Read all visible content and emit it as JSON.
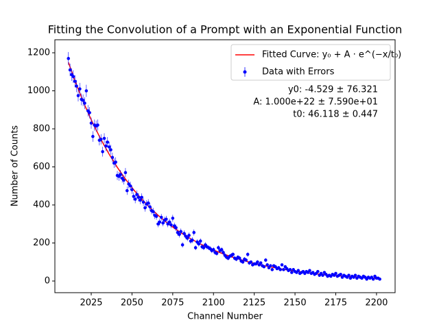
{
  "chart_data": {
    "type": "scatter",
    "title": "Fitting the Convolution of a Prompt with an Exponential Function",
    "xlabel": "Channel Number",
    "ylabel": "Number of Counts",
    "xlim": [
      2002.7,
      2211.4
    ],
    "ylim": [
      -61.3,
      1268.5
    ],
    "xticks": [
      2025,
      2050,
      2075,
      2100,
      2125,
      2150,
      2175,
      2200
    ],
    "yticks": [
      0,
      200,
      400,
      600,
      800,
      1000,
      1200
    ],
    "legend": "upper right",
    "annotations": [
      "y0: -4.529 ± 76.321",
      "A: 1.000e+22 ± 7.590e+01",
      "t0: 46.118 ± 0.447"
    ],
    "series": [
      {
        "name": "Fitted Curve: y₀ + A · e^(−x/t₀)",
        "color": "#ff0000",
        "type": "line",
        "x": [
          2011,
          2016,
          2021,
          2026,
          2031,
          2036,
          2041,
          2046,
          2051,
          2056,
          2061,
          2066,
          2071,
          2076,
          2081,
          2086,
          2091,
          2096,
          2101,
          2106,
          2111,
          2116,
          2121,
          2126,
          2131,
          2136,
          2141,
          2146,
          2151,
          2156,
          2161,
          2166,
          2171,
          2176,
          2181,
          2186,
          2191,
          2196,
          2201
        ],
        "values": [
          1149.5,
          1030.9,
          924.5,
          829.1,
          743.4,
          666.6,
          597.6,
          535.7,
          480.2,
          430.4,
          385.7,
          345.6,
          309.7,
          277.4,
          248.4,
          222.4,
          199.1,
          178.2,
          159.4,
          142.6,
          127.5,
          113.9,
          101.7,
          90.8,
          81.0,
          72.3,
          64.4,
          57.3,
          50.9,
          45.3,
          40.1,
          35.6,
          31.4,
          27.8,
          24.4,
          21.5,
          18.8,
          16.4,
          14.3
        ]
      },
      {
        "name": "Data with Errors",
        "color": "#0000ff",
        "type": "errorbar",
        "x": [
          2011,
          2012,
          2013,
          2014,
          2015,
          2016,
          2017,
          2018,
          2019,
          2020,
          2021,
          2022,
          2023,
          2024,
          2025,
          2026,
          2027,
          2028,
          2029,
          2030,
          2031,
          2032,
          2033,
          2034,
          2035,
          2036,
          2037,
          2038,
          2039,
          2040,
          2041,
          2042,
          2043,
          2044,
          2045,
          2046,
          2047,
          2048,
          2049,
          2050,
          2051,
          2052,
          2053,
          2054,
          2055,
          2056,
          2057,
          2058,
          2059,
          2060,
          2061,
          2062,
          2063,
          2064,
          2065,
          2066,
          2067,
          2068,
          2069,
          2070,
          2071,
          2072,
          2073,
          2074,
          2075,
          2076,
          2077,
          2078,
          2079,
          2080,
          2081,
          2082,
          2083,
          2084,
          2085,
          2086,
          2087,
          2088,
          2089,
          2090,
          2091,
          2092,
          2093,
          2094,
          2095,
          2096,
          2097,
          2098,
          2099,
          2100,
          2101,
          2102,
          2103,
          2104,
          2105,
          2106,
          2107,
          2108,
          2109,
          2110,
          2111,
          2112,
          2113,
          2114,
          2115,
          2116,
          2117,
          2118,
          2119,
          2120,
          2121,
          2122,
          2123,
          2124,
          2125,
          2126,
          2127,
          2128,
          2129,
          2130,
          2131,
          2132,
          2133,
          2134,
          2135,
          2136,
          2137,
          2138,
          2139,
          2140,
          2141,
          2142,
          2143,
          2144,
          2145,
          2146,
          2147,
          2148,
          2149,
          2150,
          2151,
          2152,
          2153,
          2154,
          2155,
          2156,
          2157,
          2158,
          2159,
          2160,
          2161,
          2162,
          2163,
          2164,
          2165,
          2166,
          2167,
          2168,
          2169,
          2170,
          2171,
          2172,
          2173,
          2174,
          2175,
          2176,
          2177,
          2178,
          2179,
          2180,
          2181,
          2182,
          2183,
          2184,
          2185,
          2186,
          2187,
          2188,
          2189,
          2190,
          2191,
          2192,
          2193,
          2194,
          2195,
          2196,
          2197,
          2198,
          2199,
          2200,
          2201,
          2202
        ],
        "values": [
          1170,
          1110,
          1085,
          1075,
          1050,
          1025,
          975,
          1010,
          955,
          950,
          935,
          1000,
          895,
          885,
          830,
          760,
          820,
          815,
          820,
          740,
          745,
          680,
          750,
          710,
          730,
          705,
          690,
          650,
          620,
          625,
          555,
          550,
          560,
          540,
          530,
          570,
          475,
          510,
          500,
          480,
          445,
          430,
          455,
          440,
          425,
          440,
          415,
          385,
          405,
          410,
          390,
          370,
          365,
          345,
          340,
          300,
          310,
          335,
          305,
          320,
          325,
          300,
          310,
          295,
          330,
          290,
          280,
          255,
          245,
          260,
          190,
          250,
          235,
          225,
          240,
          210,
          215,
          255,
          175,
          205,
          195,
          210,
          180,
          175,
          190,
          180,
          175,
          170,
          160,
          165,
          150,
          145,
          175,
          160,
          165,
          150,
          135,
          125,
          120,
          130,
          135,
          140,
          120,
          115,
          125,
          120,
          105,
          100,
          115,
          110,
          140,
          95,
          100,
          85,
          90,
          90,
          100,
          85,
          95,
          80,
          75,
          110,
          85,
          70,
          80,
          60,
          80,
          75,
          65,
          70,
          60,
          85,
          60,
          75,
          65,
          55,
          60,
          45,
          60,
          50,
          45,
          55,
          40,
          45,
          50,
          40,
          50,
          45,
          55,
          40,
          45,
          35,
          40,
          50,
          30,
          40,
          30,
          45,
          35,
          25,
          30,
          25,
          35,
          30,
          40,
          25,
          30,
          35,
          20,
          30,
          25,
          20,
          30,
          15,
          25,
          20,
          30,
          15,
          25,
          20,
          15,
          25,
          20,
          10,
          20,
          15,
          20,
          10,
          25,
          15,
          15,
          10
        ],
        "errors": [
          34,
          33,
          33,
          33,
          32,
          32,
          31,
          32,
          31,
          31,
          31,
          32,
          30,
          30,
          29,
          28,
          29,
          29,
          29,
          27,
          27,
          26,
          27,
          27,
          27,
          27,
          26,
          25,
          25,
          25,
          24,
          23,
          24,
          23,
          23,
          24,
          22,
          23,
          22,
          22,
          21,
          21,
          21,
          21,
          21,
          21,
          20,
          20,
          20,
          20,
          20,
          19,
          19,
          19,
          18,
          17,
          18,
          18,
          17,
          18,
          18,
          17,
          18,
          17,
          18,
          17,
          17,
          16,
          16,
          16,
          14,
          16,
          15,
          15,
          15,
          14,
          15,
          16,
          13,
          14,
          14,
          14,
          13,
          13,
          14,
          13,
          13,
          13,
          13,
          13,
          12,
          12,
          13,
          13,
          13,
          12,
          12,
          11,
          11,
          11,
          12,
          12,
          11,
          11,
          11,
          11,
          10,
          10,
          11,
          10,
          12,
          10,
          10,
          9,
          9,
          9,
          10,
          9,
          10,
          9,
          9,
          10,
          9,
          8,
          9,
          8,
          9,
          9,
          8,
          8,
          8,
          9,
          8,
          9,
          8,
          7,
          8,
          7,
          8,
          7,
          7,
          7,
          6,
          7,
          7,
          6,
          7,
          7,
          7,
          6,
          7,
          6,
          6,
          7,
          5,
          6,
          5,
          7,
          6,
          5,
          5,
          5,
          6,
          5,
          6,
          5,
          5,
          6,
          4,
          5,
          5,
          4,
          5,
          4,
          5,
          4,
          5,
          4,
          5,
          4,
          4,
          5,
          4,
          3,
          4,
          4,
          4,
          3,
          5,
          4,
          4,
          3
        ]
      }
    ]
  }
}
